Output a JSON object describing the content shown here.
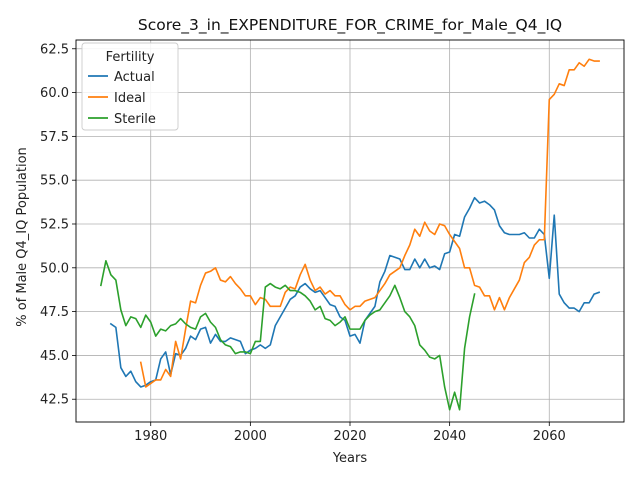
{
  "chart_data": {
    "type": "line",
    "title": "Score_3_in_EXPENDITURE_FOR_CRIME_for_Male_Q4_IQ",
    "xlabel": "Years",
    "ylabel": "% of Male Q4_IQ Population",
    "xlim": [
      1965,
      2075
    ],
    "ylim": [
      41.2,
      63.0
    ],
    "xticks": [
      1980,
      2000,
      2020,
      2040,
      2060
    ],
    "yticks": [
      42.5,
      45.0,
      47.5,
      50.0,
      52.5,
      55.0,
      57.5,
      60.0,
      62.5
    ],
    "xtick_labels": [
      "1980",
      "2000",
      "2020",
      "2040",
      "2060"
    ],
    "ytick_labels": [
      "42.5",
      "45.0",
      "47.5",
      "50.0",
      "52.5",
      "55.0",
      "57.5",
      "60.0",
      "62.5"
    ],
    "grid": true,
    "legend": {
      "title": "Fertility",
      "placement": "top-left"
    },
    "series": [
      {
        "name": "Actual",
        "color": "#1f77b4",
        "x": [
          1972,
          1973,
          1974,
          1975,
          1976,
          1977,
          1978,
          1979,
          1980,
          1981,
          1982,
          1983,
          1984,
          1985,
          1986,
          1987,
          1988,
          1989,
          1990,
          1991,
          1992,
          1993,
          1994,
          1995,
          1996,
          1997,
          1998,
          1999,
          2000,
          2001,
          2002,
          2003,
          2004,
          2005,
          2006,
          2007,
          2008,
          2009,
          2010,
          2011,
          2012,
          2013,
          2014,
          2015,
          2016,
          2017,
          2018,
          2019,
          2020,
          2021,
          2022,
          2023,
          2024,
          2025,
          2026,
          2027,
          2028,
          2029,
          2030,
          2031,
          2032,
          2033,
          2034,
          2035,
          2036,
          2037,
          2038,
          2039,
          2040,
          2041,
          2042,
          2043,
          2044,
          2045,
          2046,
          2047,
          2048,
          2049,
          2050,
          2051,
          2052,
          2053,
          2054,
          2055,
          2056,
          2057,
          2058,
          2059,
          2060,
          2061,
          2062,
          2063,
          2064,
          2065,
          2066,
          2067,
          2068,
          2069,
          2070
        ],
        "values": [
          46.8,
          46.6,
          44.3,
          43.8,
          44.1,
          43.5,
          43.2,
          43.3,
          43.5,
          43.6,
          44.8,
          45.2,
          43.9,
          45.1,
          45.0,
          45.4,
          46.1,
          45.9,
          46.5,
          46.6,
          45.7,
          46.2,
          45.8,
          45.8,
          46.0,
          45.9,
          45.8,
          45.1,
          45.3,
          45.4,
          45.6,
          45.4,
          45.6,
          46.7,
          47.2,
          47.7,
          48.2,
          48.4,
          48.9,
          49.1,
          48.8,
          48.6,
          48.7,
          48.3,
          47.9,
          47.8,
          47.2,
          47.0,
          46.1,
          46.2,
          45.7,
          47.0,
          47.4,
          47.8,
          49.2,
          49.8,
          50.7,
          50.6,
          50.5,
          49.9,
          49.9,
          50.5,
          50.0,
          50.5,
          50.0,
          50.1,
          49.9,
          50.8,
          50.9,
          51.9,
          51.8,
          52.9,
          53.4,
          54.0,
          53.7,
          53.8,
          53.6,
          53.3,
          52.4,
          52.0,
          51.9,
          51.9,
          51.9,
          52.0,
          51.7,
          51.7,
          52.2,
          51.9,
          49.4,
          53.0,
          48.5,
          48.0,
          47.7,
          47.7,
          47.5,
          48.0,
          48.0,
          48.5,
          48.6
        ]
      },
      {
        "name": "Ideal",
        "color": "#ff7f0e",
        "x": [
          1978,
          1979,
          1980,
          1981,
          1982,
          1983,
          1984,
          1985,
          1986,
          1987,
          1988,
          1989,
          1990,
          1991,
          1992,
          1993,
          1994,
          1995,
          1996,
          1997,
          1998,
          1999,
          2000,
          2001,
          2002,
          2003,
          2004,
          2005,
          2006,
          2007,
          2008,
          2009,
          2010,
          2011,
          2012,
          2013,
          2014,
          2015,
          2016,
          2017,
          2018,
          2019,
          2020,
          2021,
          2022,
          2023,
          2024,
          2025,
          2026,
          2027,
          2028,
          2029,
          2030,
          2031,
          2032,
          2033,
          2034,
          2035,
          2036,
          2037,
          2038,
          2039,
          2040,
          2041,
          2042,
          2043,
          2044,
          2045,
          2046,
          2047,
          2048,
          2049,
          2050,
          2051,
          2052,
          2053,
          2054,
          2055,
          2056,
          2057,
          2058,
          2059,
          2060,
          2061,
          2062,
          2063,
          2064,
          2065,
          2066,
          2067,
          2068,
          2069,
          2070
        ],
        "values": [
          44.6,
          43.2,
          43.4,
          43.6,
          43.6,
          44.2,
          43.8,
          45.8,
          44.8,
          46.5,
          48.1,
          48.0,
          49.0,
          49.7,
          49.8,
          50.0,
          49.3,
          49.2,
          49.5,
          49.1,
          48.8,
          48.4,
          48.4,
          47.9,
          48.3,
          48.2,
          47.8,
          47.8,
          47.8,
          48.6,
          48.9,
          48.8,
          49.6,
          50.2,
          49.3,
          48.7,
          48.9,
          48.5,
          48.7,
          48.4,
          48.4,
          47.9,
          47.6,
          47.8,
          47.8,
          48.1,
          48.2,
          48.3,
          48.7,
          49.1,
          49.6,
          49.8,
          50.0,
          50.7,
          51.3,
          52.2,
          51.8,
          52.6,
          52.1,
          51.9,
          52.5,
          52.4,
          51.9,
          51.5,
          51.1,
          50.0,
          50.0,
          49.0,
          48.9,
          48.4,
          48.4,
          47.6,
          48.3,
          47.6,
          48.3,
          48.8,
          49.3,
          50.3,
          50.6,
          51.3,
          51.6,
          51.6,
          59.6,
          59.9,
          60.5,
          60.4,
          61.3,
          61.3,
          61.7,
          61.5,
          61.9,
          61.8,
          61.8
        ]
      },
      {
        "name": "Sterile",
        "color": "#2ca02c",
        "x": [
          1970,
          1971,
          1972,
          1973,
          1974,
          1975,
          1976,
          1977,
          1978,
          1979,
          1980,
          1981,
          1982,
          1983,
          1984,
          1985,
          1986,
          1987,
          1988,
          1989,
          1990,
          1991,
          1992,
          1993,
          1994,
          1995,
          1996,
          1997,
          1998,
          1999,
          2000,
          2001,
          2002,
          2003,
          2004,
          2005,
          2006,
          2007,
          2008,
          2009,
          2010,
          2011,
          2012,
          2013,
          2014,
          2015,
          2016,
          2017,
          2018,
          2019,
          2020,
          2021,
          2022,
          2023,
          2024,
          2025,
          2026,
          2027,
          2028,
          2029,
          2030,
          2031,
          2032,
          2033,
          2034,
          2035,
          2036,
          2037,
          2038,
          2039,
          2040,
          2041,
          2042,
          2043,
          2044,
          2045
        ],
        "values": [
          49.0,
          50.4,
          49.6,
          49.3,
          47.6,
          46.7,
          47.2,
          47.1,
          46.6,
          47.3,
          46.9,
          46.1,
          46.5,
          46.4,
          46.7,
          46.8,
          47.1,
          46.8,
          46.6,
          46.5,
          47.2,
          47.4,
          46.9,
          46.6,
          45.9,
          45.6,
          45.5,
          45.1,
          45.2,
          45.2,
          45.1,
          45.8,
          45.8,
          48.9,
          49.1,
          48.9,
          48.8,
          49.0,
          48.7,
          48.7,
          48.6,
          48.4,
          48.1,
          47.6,
          47.8,
          47.1,
          47.0,
          46.7,
          46.9,
          47.2,
          46.5,
          46.5,
          46.5,
          47.0,
          47.3,
          47.5,
          47.6,
          48.0,
          48.4,
          49.0,
          48.3,
          47.5,
          47.2,
          46.7,
          45.6,
          45.3,
          44.9,
          44.8,
          45.0,
          43.2,
          41.9,
          42.9,
          41.9,
          45.4,
          47.2,
          48.5
        ]
      }
    ]
  }
}
